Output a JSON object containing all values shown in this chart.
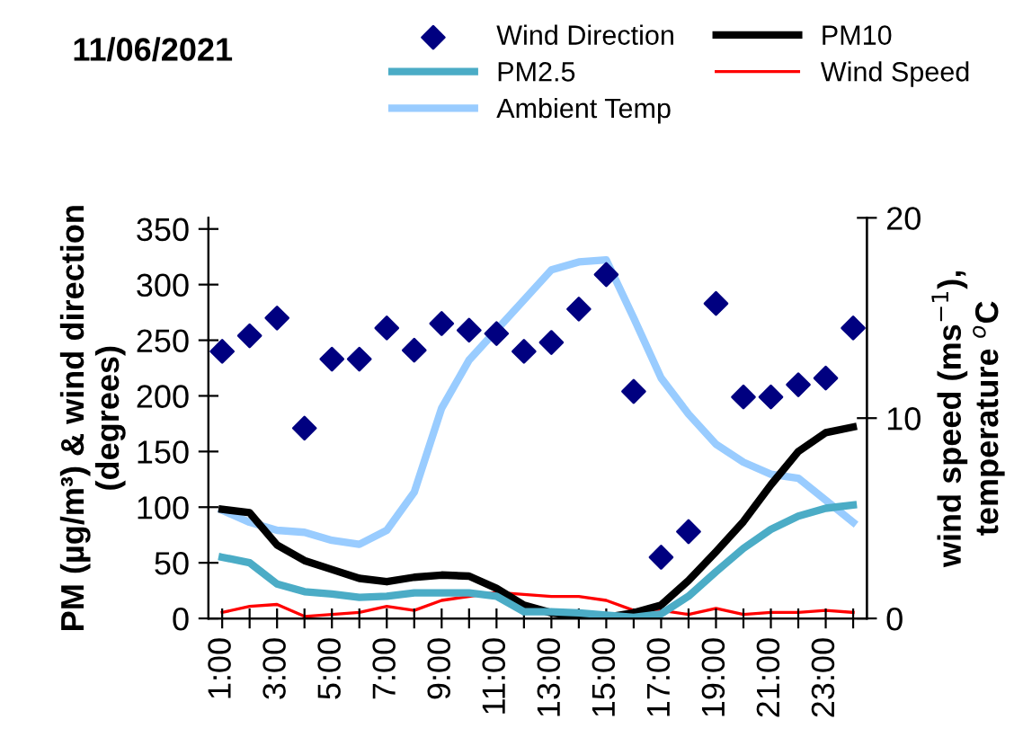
{
  "chart_data": {
    "type": "line",
    "title": "11/06/2021",
    "categories": [
      "1:00",
      null,
      "3:00",
      null,
      "5:00",
      null,
      "7:00",
      null,
      "9:00",
      null,
      "11:00",
      null,
      "13:00",
      null,
      "15:00",
      null,
      "17:00",
      null,
      "19:00",
      null,
      "21:00",
      null,
      "23:00",
      null
    ],
    "series": [
      {
        "name": "Wind Direction",
        "type": "scatter",
        "marker": "diamond",
        "color": "#000080",
        "values": [
          240,
          254,
          270,
          171,
          233,
          233,
          261,
          241,
          265,
          259,
          256,
          240,
          248,
          278,
          309,
          204,
          55,
          78,
          283,
          199,
          199,
          210,
          216,
          261
        ]
      },
      {
        "name": "PM10",
        "color": "#000000",
        "values": [
          98,
          95,
          66,
          52,
          44,
          36,
          33,
          37,
          39,
          38,
          27,
          12,
          5,
          2,
          1,
          5,
          12,
          34,
          60,
          87,
          120,
          150,
          167,
          172
        ]
      },
      {
        "name": "PM2.5",
        "color": "#4bacc6",
        "values": [
          55,
          50,
          31,
          24,
          22,
          19,
          20,
          23,
          23,
          23,
          20,
          6,
          6,
          5,
          3,
          1,
          4,
          20,
          42,
          63,
          80,
          92,
          99,
          102
        ]
      },
      {
        "name": "Wind Speed",
        "axis": "y2",
        "color": "#ff0000",
        "values": [
          0.3,
          0.6,
          0.7,
          0.1,
          0.2,
          0.3,
          0.6,
          0.4,
          0.9,
          1.1,
          1.3,
          1.2,
          1.1,
          1.1,
          0.9,
          0.4,
          0.4,
          0.2,
          0.5,
          0.2,
          0.3,
          0.3,
          0.4,
          0.3
        ]
      },
      {
        "name": "Ambient Temp",
        "axis": "y2",
        "color": "#99ccff",
        "values": [
          5.4,
          4.8,
          4.4,
          4.3,
          3.9,
          3.7,
          4.4,
          6.3,
          10.5,
          12.9,
          14.4,
          15.9,
          17.4,
          17.8,
          17.9,
          15.0,
          12.0,
          10.2,
          8.7,
          7.8,
          7.2,
          7.0,
          5.9,
          4.8
        ]
      }
    ],
    "ylabel": "PM (µg/m³) & wind direction\n(degrees)",
    "y2label": "wind speed (ms$^{−1}$),\ntemperature $^{o}$C",
    "ylim": [
      0,
      360
    ],
    "yticks": [
      0,
      50,
      100,
      150,
      200,
      250,
      300,
      350
    ],
    "y2lim": [
      0,
      20
    ],
    "y2ticks": [
      0,
      10,
      20
    ],
    "grid": false,
    "legend": "top"
  }
}
